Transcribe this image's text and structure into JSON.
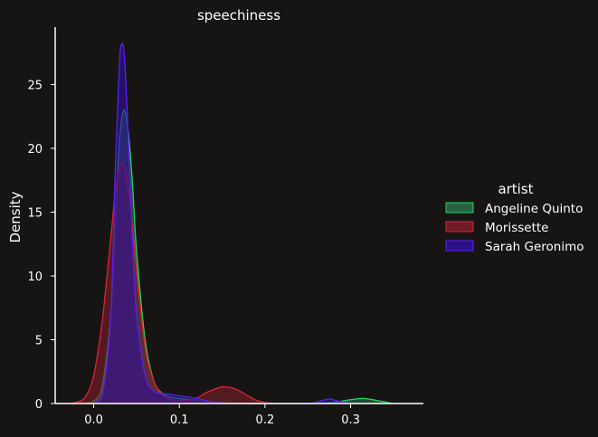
{
  "chart_data": {
    "type": "area",
    "title": "speechiness",
    "xlabel": "",
    "ylabel": "Density",
    "xlim": [
      -0.045,
      0.385
    ],
    "ylim": [
      0,
      29.5
    ],
    "xticks": [
      0.0,
      0.1,
      0.2,
      0.3
    ],
    "xtick_labels": [
      "0.0",
      "0.1",
      "0.2",
      "0.3"
    ],
    "yticks": [
      0,
      5,
      10,
      15,
      20,
      25
    ],
    "ytick_labels": [
      "0",
      "5",
      "10",
      "15",
      "20",
      "25"
    ],
    "grid": false,
    "legend": {
      "title": "artist",
      "placement": "right"
    },
    "series": [
      {
        "name": "Angeline Quinto",
        "color": "#1fd65f",
        "fill": "#2e6e4c",
        "x": [
          -0.01,
          0.0,
          0.01,
          0.02,
          0.025,
          0.03,
          0.035,
          0.04,
          0.045,
          0.05,
          0.06,
          0.07,
          0.08,
          0.09,
          0.1,
          0.12,
          0.14,
          0.16,
          0.2,
          0.25,
          0.28,
          0.3,
          0.315,
          0.33,
          0.35
        ],
        "y": [
          0,
          0.2,
          1.4,
          7.0,
          14.0,
          20.5,
          23.0,
          21.5,
          17.5,
          12.0,
          5.0,
          1.8,
          0.8,
          0.5,
          0.4,
          0.25,
          0.1,
          0.03,
          0,
          0,
          0.1,
          0.3,
          0.4,
          0.25,
          0
        ]
      },
      {
        "name": "Morissette",
        "color": "#e0203a",
        "fill": "#7a1d28",
        "x": [
          -0.03,
          -0.02,
          -0.01,
          0.0,
          0.01,
          0.02,
          0.025,
          0.03,
          0.035,
          0.04,
          0.045,
          0.05,
          0.06,
          0.07,
          0.08,
          0.09,
          0.1,
          0.11,
          0.12,
          0.13,
          0.14,
          0.15,
          0.16,
          0.17,
          0.18,
          0.19,
          0.2,
          0.21
        ],
        "y": [
          0,
          0.1,
          0.5,
          2.2,
          6.5,
          13.0,
          16.5,
          18.5,
          18.7,
          17.0,
          14.0,
          10.5,
          4.5,
          1.8,
          0.7,
          0.3,
          0.2,
          0.25,
          0.4,
          0.8,
          1.1,
          1.3,
          1.25,
          1.0,
          0.6,
          0.25,
          0.08,
          0
        ]
      },
      {
        "name": "Sarah Geronimo",
        "color": "#5a1ef0",
        "fill": "#2f0f9c",
        "x": [
          0.0,
          0.01,
          0.02,
          0.025,
          0.03,
          0.033,
          0.036,
          0.04,
          0.045,
          0.05,
          0.06,
          0.07,
          0.08,
          0.09,
          0.1,
          0.11,
          0.12,
          0.13,
          0.14,
          0.16,
          0.2,
          0.25,
          0.265,
          0.275,
          0.285,
          0.3
        ],
        "y": [
          0,
          0.6,
          7.0,
          18.0,
          26.5,
          28.2,
          27.0,
          21.5,
          13.0,
          7.0,
          2.2,
          1.0,
          0.8,
          0.7,
          0.6,
          0.5,
          0.4,
          0.25,
          0.1,
          0,
          0,
          0,
          0.2,
          0.35,
          0.2,
          0
        ]
      }
    ]
  }
}
